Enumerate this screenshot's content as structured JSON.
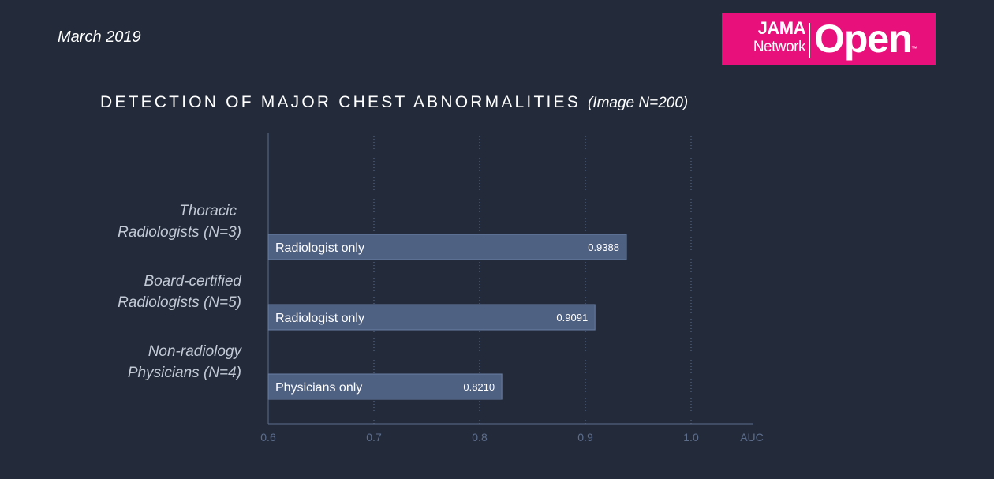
{
  "header": {
    "date": "March 2019"
  },
  "logo": {
    "jama": "JAMA",
    "network": "Network",
    "open": "Open",
    "tm": "™"
  },
  "chart_title": {
    "main": "DETECTION OF MAJOR CHEST ABNORMALITIES",
    "sub": "(Image N=200)"
  },
  "colors": {
    "background": "#232b3b",
    "bar": "#4f6183",
    "bar_border": "#6a7ea3",
    "axis": "#5d6d8c",
    "grid": "#5d6d8c",
    "group_label": "#c3cad6",
    "logo": "#e8107a"
  },
  "chart_data": {
    "type": "bar",
    "orientation": "horizontal",
    "title": "DETECTION OF MAJOR CHEST ABNORMALITIES",
    "subtitle": "(Image N=200)",
    "xlabel": "AUC",
    "xlim": [
      0.6,
      1.0
    ],
    "x_ticks": [
      "0.6",
      "0.7",
      "0.8",
      "0.9",
      "1.0"
    ],
    "grid": true,
    "categories": [
      [
        "Thoracic",
        "Radiologists (N=3)"
      ],
      [
        "Board-certified",
        "Radiologists (N=5)"
      ],
      [
        "Non-radiology",
        "Physicians (N=4)"
      ]
    ],
    "bars": [
      {
        "label": "Radiologist only",
        "value": 0.9388,
        "value_label": "0.9388"
      },
      {
        "label": "Radiologist only",
        "value": 0.9091,
        "value_label": "0.9091"
      },
      {
        "label": "Physicians only",
        "value": 0.821,
        "value_label": "0.8210"
      }
    ]
  }
}
